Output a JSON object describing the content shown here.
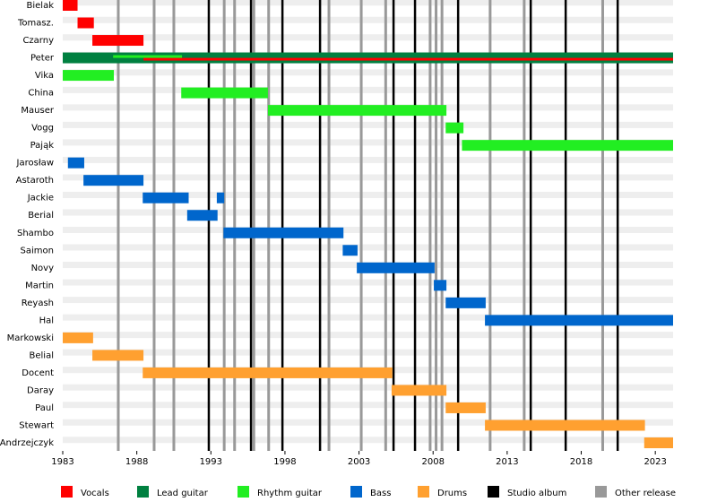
{
  "chart_data": {
    "type": "timeline",
    "categories": [
      "Bielak",
      "Tomasz.",
      "Czarny",
      "Peter",
      "Vika",
      "China",
      "Mauser",
      "Vogg",
      "Pająk",
      "Jarosław",
      "Astaroth",
      "Jackie",
      "Berial",
      "Shambo",
      "Saimon",
      "Novy",
      "Martin",
      "Reyash",
      "Hal",
      "Markowski",
      "Belial",
      "Docent",
      "Daray",
      "Paul",
      "Stewart",
      "Andrzejczyk"
    ],
    "xlim": [
      1983,
      2024.2
    ],
    "xticks": [
      1983,
      1988,
      1993,
      1998,
      2003,
      2008,
      2013,
      2018,
      2023
    ],
    "series": [
      {
        "name": "Vocals",
        "color": "#ff0000",
        "values": [
          [
            [
              1983,
              1984.0
            ]
          ],
          [
            [
              1984.0,
              1985.1
            ]
          ],
          [
            [
              1985.0,
              1988.45
            ]
          ],
          [
            [
              1988.45,
              2024.2
            ]
          ],
          null,
          null,
          null,
          null,
          null,
          null,
          null,
          null,
          null,
          null,
          null,
          null,
          null,
          null,
          null,
          null,
          null,
          null,
          null,
          null,
          null,
          null
        ]
      },
      {
        "name": "Lead guitar",
        "color": "#008040",
        "values": [
          null,
          null,
          null,
          [
            [
              1983,
              2024.2
            ]
          ],
          null,
          null,
          null,
          null,
          null,
          null,
          null,
          null,
          null,
          null,
          null,
          null,
          null,
          null,
          null,
          null,
          null,
          null,
          null,
          null,
          null,
          null
        ]
      },
      {
        "name": "Rhythm guitar",
        "color": "#22ee22",
        "values": [
          null,
          null,
          null,
          [
            [
              1986.4,
              1991.05
            ]
          ],
          [
            [
              1983,
              1986.45
            ]
          ],
          [
            [
              1991.0,
              1996.85
            ]
          ],
          [
            [
              1996.85,
              2008.9
            ]
          ],
          [
            [
              2008.85,
              2010.05
            ]
          ],
          [
            [
              2009.95,
              2024.2
            ]
          ],
          null,
          null,
          null,
          null,
          null,
          null,
          null,
          null,
          null,
          null,
          null,
          null,
          null,
          null,
          null,
          null,
          null
        ]
      },
      {
        "name": "Bass",
        "color": "#0066cc",
        "values": [
          null,
          null,
          null,
          null,
          null,
          null,
          null,
          null,
          null,
          [
            [
              1983.35,
              1984.45
            ]
          ],
          [
            [
              1984.4,
              1988.45
            ]
          ],
          [
            [
              1988.4,
              1991.5
            ],
            [
              1993.4,
              1993.9
            ]
          ],
          [
            [
              1991.4,
              1993.45
            ]
          ],
          [
            [
              1993.85,
              2001.95
            ]
          ],
          [
            [
              2001.9,
              2002.9
            ]
          ],
          [
            [
              2002.85,
              2008.1
            ]
          ],
          [
            [
              2008.05,
              2008.9
            ]
          ],
          [
            [
              2008.85,
              2011.55
            ]
          ],
          [
            [
              2011.5,
              2024.2
            ]
          ],
          null,
          null,
          null,
          null,
          null,
          null,
          null
        ]
      },
      {
        "name": "Drums",
        "color": "#ffa030",
        "values": [
          null,
          null,
          null,
          null,
          null,
          null,
          null,
          null,
          null,
          null,
          null,
          null,
          null,
          null,
          null,
          null,
          null,
          null,
          null,
          [
            [
              1983,
              1985.05
            ]
          ],
          [
            [
              1985.0,
              1988.45
            ]
          ],
          [
            [
              1988.4,
              2005.25
            ]
          ],
          [
            [
              2005.2,
              2008.9
            ]
          ],
          [
            [
              2008.85,
              2011.55
            ]
          ],
          [
            [
              2011.5,
              2022.3
            ]
          ],
          [
            [
              2022.25,
              2024.2
            ]
          ]
        ]
      }
    ],
    "markers": [
      {
        "name": "Studio album",
        "color": "#000000",
        "x": [
          1992.86,
          1995.71,
          1997.83,
          2000.37,
          2005.33,
          2006.78,
          2009.69,
          2014.59,
          2016.95,
          2020.46
        ]
      },
      {
        "name": "Other release",
        "color": "#999999",
        "x": [
          1986.75,
          1989.17,
          1990.5,
          1993.9,
          1994.6,
          1995.9,
          1996.9,
          2000.97,
          2003.15,
          2004.8,
          2007.8,
          2008.2,
          2008.6,
          2011.85,
          2014.15,
          2019.45
        ]
      }
    ]
  }
}
